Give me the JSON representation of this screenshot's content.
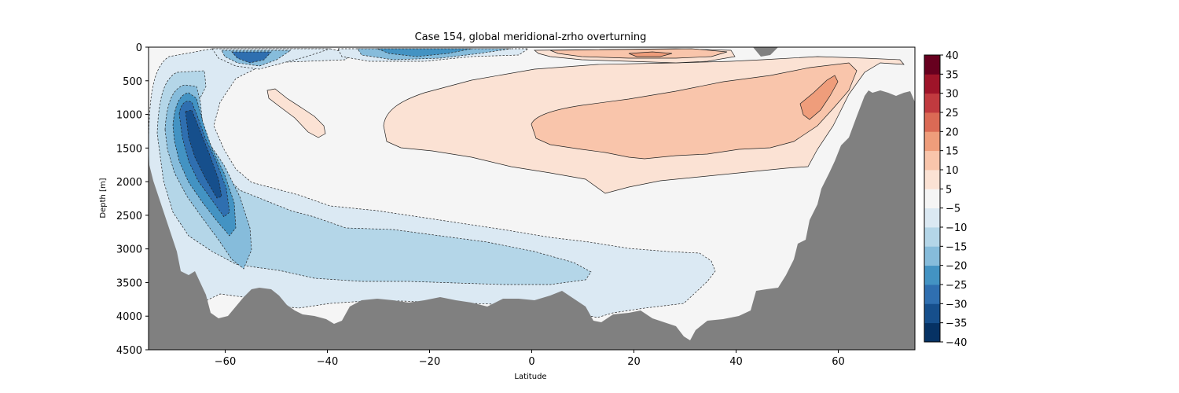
{
  "chart_data": {
    "type": "heatmap",
    "title": "Case 154, global meridional-zrho overturning",
    "xlabel": "Latitude",
    "ylabel": "Depth [m]",
    "xlim": [
      -75,
      75
    ],
    "ylim": [
      4500,
      0
    ],
    "xticks": [
      -60,
      -40,
      -20,
      0,
      20,
      40,
      60
    ],
    "xtick_labels": [
      "−60",
      "−40",
      "−20",
      "0",
      "20",
      "40",
      "60"
    ],
    "yticks": [
      0,
      500,
      1000,
      1500,
      2000,
      2500,
      3000,
      3500,
      4000,
      4500
    ],
    "ytick_labels": [
      "0",
      "500",
      "1000",
      "1500",
      "2000",
      "2500",
      "3000",
      "3500",
      "4000",
      "4500"
    ],
    "colorbar": {
      "levels": [
        -40,
        -35,
        -30,
        -25,
        -20,
        -15,
        -10,
        -5,
        5,
        10,
        15,
        20,
        25,
        30,
        35,
        40
      ],
      "tick_labels": [
        "−40",
        "−35",
        "−30",
        "−25",
        "−20",
        "−15",
        "−10",
        "−5",
        "5",
        "10",
        "15",
        "20",
        "25",
        "30",
        "35",
        "40"
      ],
      "colors": [
        "#063264",
        "#164f8c",
        "#2f6fb0",
        "#4393c3",
        "#86bcdb",
        "#b4d6e8",
        "#dbe9f3",
        "#f5f5f5",
        "#fbe2d4",
        "#f9c5ab",
        "#ef9d7b",
        "#db6a55",
        "#c13a3f",
        "#9e1429",
        "#67001f"
      ]
    },
    "land_color": "#808080",
    "background_color": "#f5f5f5",
    "line_style_negative": "dashed",
    "line_style_positive": "solid"
  }
}
